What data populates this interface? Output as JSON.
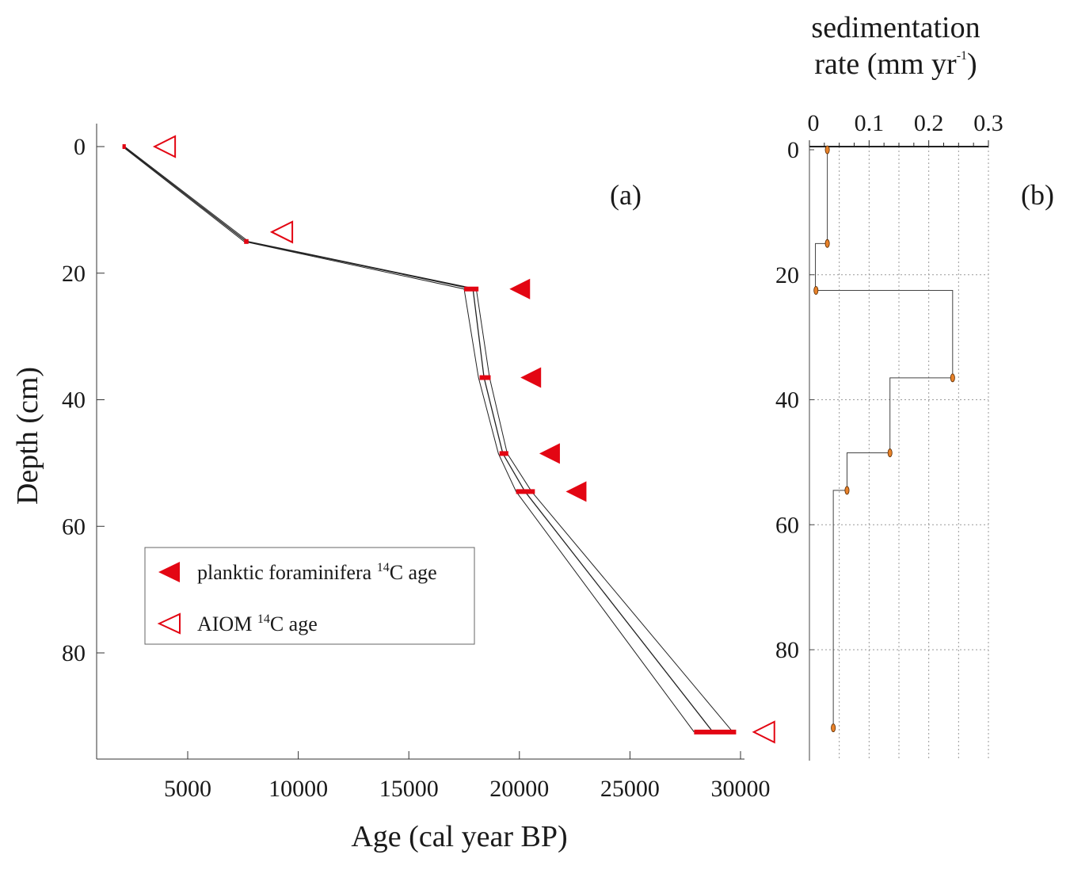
{
  "chart_data": [
    {
      "panel": "(a)",
      "type": "line",
      "xlabel": "Age (cal year BP)",
      "ylabel": "Depth (cm)",
      "xlim": [
        800,
        30000
      ],
      "ylim": [
        96,
        -4
      ],
      "xticks": [
        5000,
        10000,
        15000,
        20000,
        25000,
        30000
      ],
      "yticks": [
        0,
        20,
        40,
        60,
        80
      ],
      "age_model": {
        "depth": [
          0,
          15,
          22.5,
          36.5,
          48.5,
          54.5,
          92.5
        ],
        "median": [
          2100,
          7650,
          17900,
          18400,
          19250,
          20250,
          28750
        ],
        "lower": [
          2050,
          7550,
          17500,
          18150,
          19050,
          19850,
          27900
        ],
        "upper": [
          2150,
          7750,
          18050,
          18650,
          19450,
          20550,
          29650
        ]
      },
      "calibrated_ranges": [
        {
          "depth": 0,
          "min": 2050,
          "max": 2200
        },
        {
          "depth": 15,
          "min": 7550,
          "max": 7750
        },
        {
          "depth": 22.5,
          "min": 17500,
          "max": 18150
        },
        {
          "depth": 36.5,
          "min": 18200,
          "max": 18700
        },
        {
          "depth": 48.5,
          "min": 19100,
          "max": 19500
        },
        {
          "depth": 54.5,
          "min": 19850,
          "max": 20700
        },
        {
          "depth": 92.5,
          "min": 27900,
          "max": 29800
        }
      ],
      "series": [
        {
          "name": "planktic foraminifera ¹⁴C age",
          "marker": "filled-triangle-left",
          "color": "#e30613",
          "points": [
            {
              "x": 19550,
              "y": 22.5
            },
            {
              "x": 20050,
              "y": 36.5
            },
            {
              "x": 20900,
              "y": 48.5
            },
            {
              "x": 22100,
              "y": 54.5
            }
          ]
        },
        {
          "name": "AIOM ¹⁴C age",
          "marker": "open-triangle-left",
          "color": "#e30613",
          "points": [
            {
              "x": 3500,
              "y": 0
            },
            {
              "x": 8800,
              "y": 13.5
            },
            {
              "x": 30600,
              "y": 92.5
            }
          ]
        }
      ],
      "legend": {
        "placement": "lower-left",
        "entries": [
          {
            "prefix": "planktic foraminifera ",
            "sup": "14",
            "suffix": "C age"
          },
          {
            "prefix": "AIOM ",
            "sup": "14",
            "suffix": "C age"
          }
        ]
      }
    },
    {
      "panel": "(b)",
      "type": "line",
      "title_lines": [
        "sedimentation",
        "rate (mm yr",
        "-1",
        ")"
      ],
      "xlim": [
        0,
        0.3
      ],
      "ylim": [
        96,
        0
      ],
      "xticks": [
        0,
        0.1,
        0.2,
        0.3
      ],
      "xtick_labels": [
        "0",
        "0.1",
        "0.2",
        "0.3"
      ],
      "yticks": [
        0,
        20,
        40,
        60,
        80
      ],
      "grid": true,
      "steps": [
        {
          "top": 0,
          "bottom": 15,
          "rate": 0.03
        },
        {
          "top": 15,
          "bottom": 22.5,
          "rate": 0.01
        },
        {
          "top": 22.5,
          "bottom": 36.5,
          "rate": 0.24
        },
        {
          "top": 36.5,
          "bottom": 48.5,
          "rate": 0.135
        },
        {
          "top": 48.5,
          "bottom": 54.5,
          "rate": 0.063
        },
        {
          "top": 54.5,
          "bottom": 92.5,
          "rate": 0.04
        }
      ],
      "points": [
        {
          "x": 0.03,
          "y": 0
        },
        {
          "x": 0.03,
          "y": 15
        },
        {
          "x": 0.011,
          "y": 22.5
        },
        {
          "x": 0.24,
          "y": 36.5
        },
        {
          "x": 0.135,
          "y": 48.5
        },
        {
          "x": 0.063,
          "y": 54.5
        },
        {
          "x": 0.04,
          "y": 92.5
        }
      ],
      "point_color": "#e8822a"
    }
  ]
}
